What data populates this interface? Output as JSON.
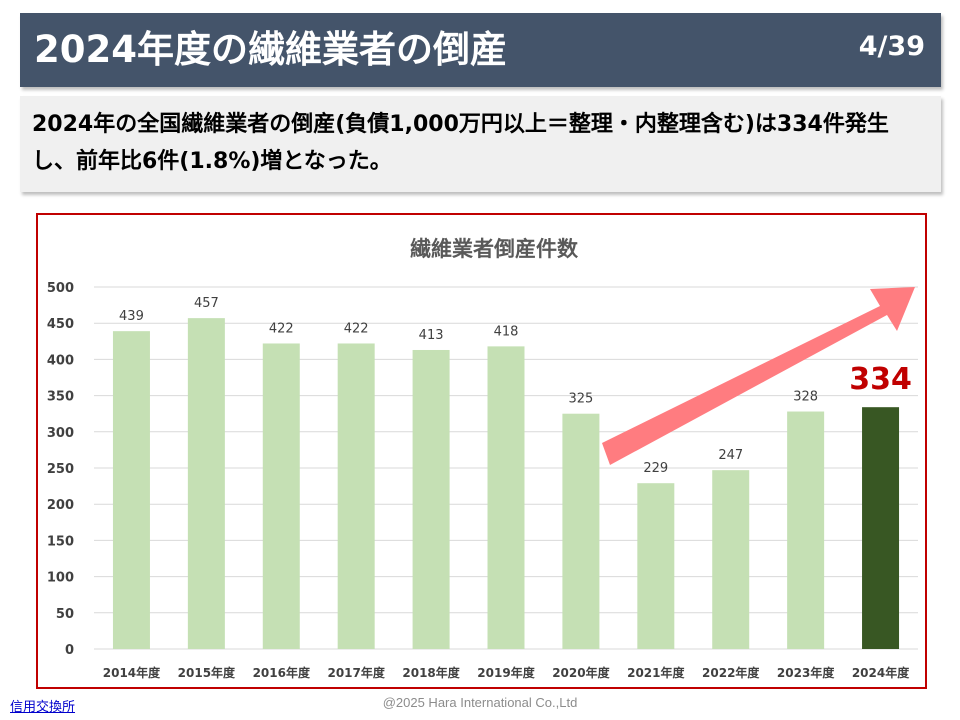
{
  "header": {
    "title": "2024年度の繊維業者の倒産",
    "page_number": "4/39"
  },
  "summary": {
    "text": "2024年の全国繊維業者の倒産(負債1,000万円以上＝整理・内整理含む)は334件発生し、前年比6件(1.8%)増となった。"
  },
  "chart_data": {
    "type": "bar",
    "title": "繊維業者倒産件数",
    "xlabel": "",
    "ylabel": "",
    "categories": [
      "2014年度",
      "2015年度",
      "2016年度",
      "2017年度",
      "2018年度",
      "2019年度",
      "2020年度",
      "2021年度",
      "2022年度",
      "2023年度",
      "2024年度"
    ],
    "values": [
      439,
      457,
      422,
      422,
      413,
      418,
      325,
      229,
      247,
      328,
      334
    ],
    "data_labels": [
      "439",
      "457",
      "422",
      "422",
      "413",
      "418",
      "325",
      "229",
      "247",
      "328",
      ""
    ],
    "highlight_label": "334",
    "ylim": [
      0,
      500
    ],
    "yticks": [
      0,
      50,
      100,
      150,
      200,
      250,
      300,
      350,
      400,
      450,
      500
    ],
    "grid": true,
    "legend": "none",
    "colors": {
      "bar": "#c5e0b4",
      "highlight_bar": "#385723",
      "highlight_label": "#c00000",
      "arrow": "#ff7c80",
      "grid": "#d9d9d9",
      "axis_text": "#404040",
      "title_text": "#595959"
    }
  },
  "footer": {
    "source_link": "信用交換所",
    "copyright": "@2025 Hara International Co.,Ltd"
  }
}
